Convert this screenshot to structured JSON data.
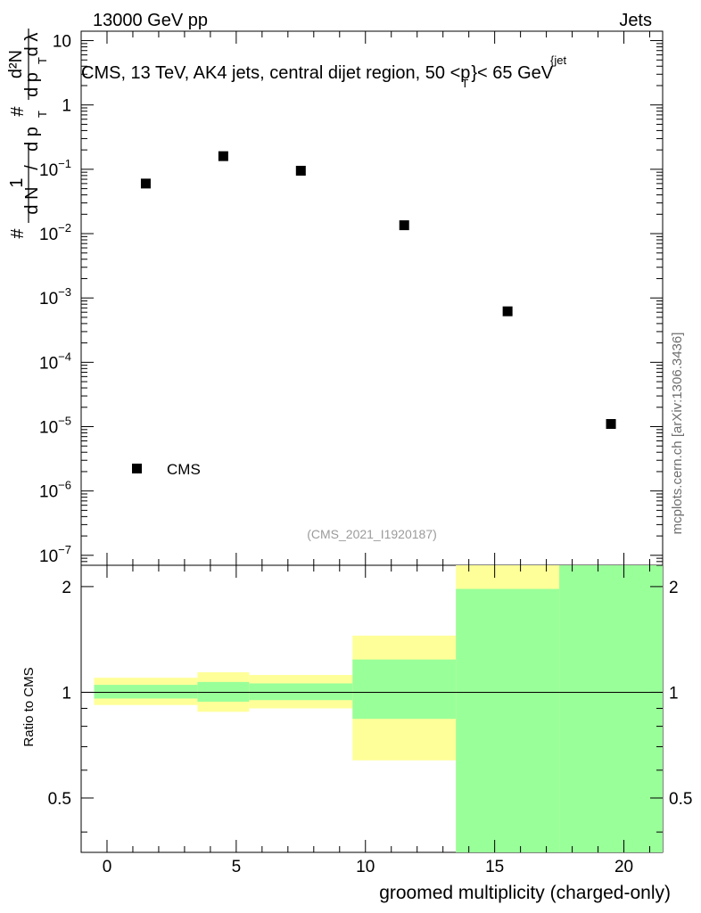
{
  "header": {
    "left": "13000 GeV pp",
    "right": "Jets"
  },
  "title": {
    "main": "CMS, 13 TeV, AK4 jets, central dijet region, 50 <p",
    "sub_t": "T",
    "sup_jet": "{jet",
    "tail": "}< 65 GeV"
  },
  "reference_id": "(CMS_2021_I1920187)",
  "side_label": "mcplots.cern.ch [arXiv:1306.3436]",
  "axes": {
    "upper_y_label": {
      "hash1": "#",
      "one": "1",
      "dN": "d N",
      "slash": "/",
      "dp": "d p",
      "T": "T",
      "hash2": "#",
      "d2N": "d²N",
      "dpdl": "d p",
      "T2": "T",
      "dlambda": "d λ"
    },
    "lower_y_label": "Ratio to CMS",
    "x_label": "groomed multiplicity (charged-only)",
    "upper_y_ticks": [
      {
        "exp": -7,
        "label": "10",
        "sup": "−7"
      },
      {
        "exp": -6,
        "label": "10",
        "sup": "−6"
      },
      {
        "exp": -5,
        "label": "10",
        "sup": "−5"
      },
      {
        "exp": -4,
        "label": "10",
        "sup": "−4"
      },
      {
        "exp": -3,
        "label": "10",
        "sup": "−3"
      },
      {
        "exp": -2,
        "label": "10",
        "sup": "−2"
      },
      {
        "exp": -1,
        "label": "10",
        "sup": "−1"
      },
      {
        "exp": 0,
        "label": "1",
        "sup": ""
      },
      {
        "exp": 1,
        "label": "10",
        "sup": ""
      }
    ],
    "lower_y_ticks": [
      {
        "value": 0.5,
        "label": "0.5"
      },
      {
        "value": 1,
        "label": "1"
      },
      {
        "value": 2,
        "label": "2"
      }
    ],
    "x_ticks": [
      0,
      5,
      10,
      15,
      20
    ]
  },
  "legend": {
    "entries": [
      "CMS"
    ]
  },
  "colors": {
    "inner_band": "#99ff99",
    "outer_band": "#ffff99",
    "marker": "#000000"
  },
  "chart_data": {
    "type": "scatter",
    "title": "CMS, 13 TeV, AK4 jets, central dijet region, 50 <p_T^{jet}< 65 GeV",
    "xlabel": "groomed multiplicity (charged-only)",
    "xlim": [
      -1,
      21.5
    ],
    "upper": {
      "yscale": "log",
      "ylim": [
        7e-08,
        14
      ],
      "series": [
        {
          "name": "CMS",
          "x": [
            1.5,
            4.5,
            7.5,
            11.5,
            15.5,
            19.5
          ],
          "y": [
            0.06,
            0.16,
            0.095,
            0.0135,
            0.00062,
            1.1e-05
          ]
        }
      ]
    },
    "ratio": {
      "ylabel": "Ratio to CMS",
      "yscale": "log",
      "ylim": [
        0.35,
        2.3
      ],
      "bins": [
        {
          "x0": -0.5,
          "x1": 3.5,
          "inner": [
            0.96,
            1.05
          ],
          "outer": [
            0.92,
            1.1
          ]
        },
        {
          "x0": 3.5,
          "x1": 5.5,
          "inner": [
            0.94,
            1.07
          ],
          "outer": [
            0.88,
            1.14
          ]
        },
        {
          "x0": 5.5,
          "x1": 9.5,
          "inner": [
            0.95,
            1.06
          ],
          "outer": [
            0.9,
            1.12
          ]
        },
        {
          "x0": 9.5,
          "x1": 13.5,
          "inner": [
            0.84,
            1.24
          ],
          "outer": [
            0.64,
            1.45
          ]
        },
        {
          "x0": 13.5,
          "x1": 17.5,
          "inner": [
            0.35,
            1.97
          ],
          "outer": [
            0.35,
            2.3
          ]
        },
        {
          "x0": 17.5,
          "x1": 21.5,
          "inner": [
            0.35,
            2.3
          ],
          "outer": [
            0.35,
            2.3
          ]
        }
      ],
      "reference_line": 1
    }
  }
}
